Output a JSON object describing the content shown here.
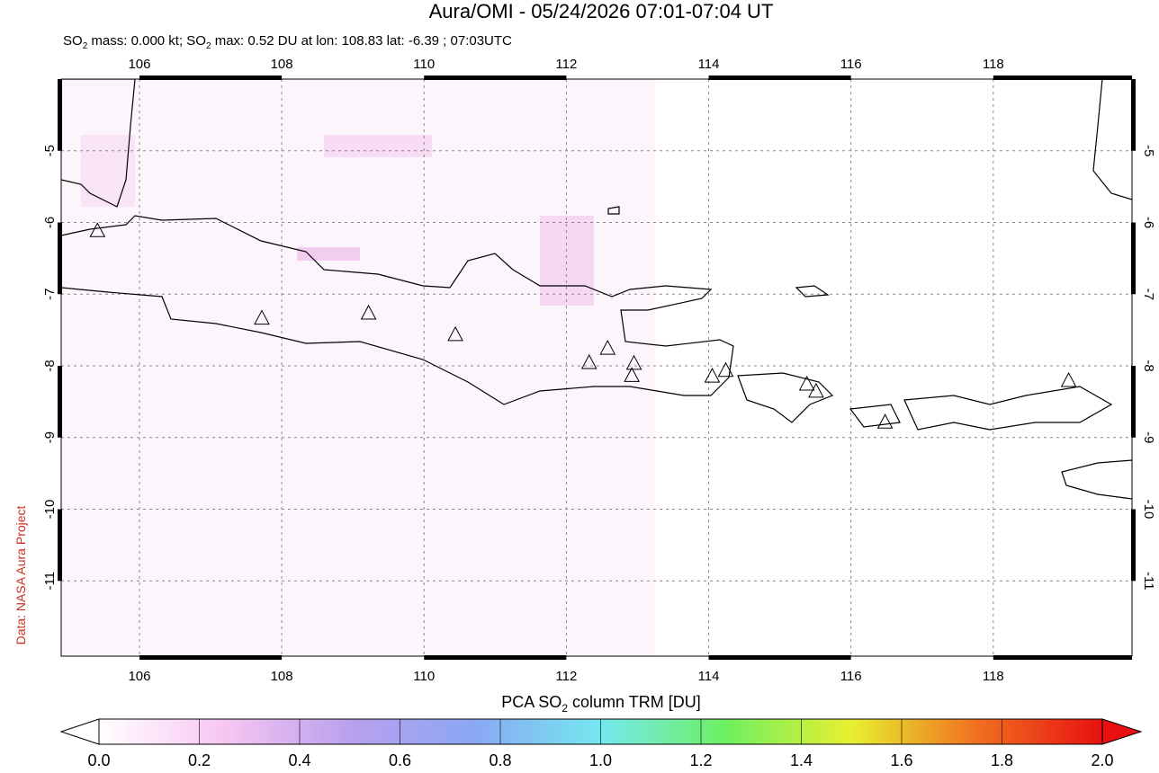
{
  "chart_data": {
    "type": "map",
    "title": "Aura/OMI - 05/24/2026 07:01-07:04 UT",
    "subtitle": [
      "SO",
      "2",
      " mass: 0.000 kt; SO",
      "2",
      " max: 0.52 DU at lon: 108.83 lat: -6.39 ; 07:03UTC"
    ],
    "credit": "Data: NASA Aura Project",
    "xlim": [
      104.9,
      119.95
    ],
    "ylim": [
      -12.05,
      -4
    ],
    "xticks": [
      106,
      108,
      110,
      112,
      114,
      116,
      118
    ],
    "yticks": [
      -11,
      -10,
      -9,
      -8,
      -7,
      -6,
      -5
    ],
    "grid": true,
    "volcanoes": {
      "x": [
        105.41,
        107.72,
        109.22,
        110.44,
        112.32,
        112.58,
        112.95,
        112.92,
        114.05,
        114.24,
        115.38,
        115.51,
        116.48,
        119.06
      ],
      "y": [
        -6.11,
        -7.33,
        -7.26,
        -7.56,
        -7.95,
        -7.75,
        -7.96,
        -8.13,
        -8.14,
        -8.06,
        -8.25,
        -8.35,
        -8.78,
        -8.2
      ]
    },
    "colorbar": {
      "label": [
        "PCA SO",
        "2",
        " column TRM [DU]"
      ],
      "clim": [
        0,
        2
      ],
      "colors": [
        "#ffffff",
        "#f7c6f2",
        "#b9a0ee",
        "#8aa8f4",
        "#74e8f0",
        "#6ef060",
        "#e8f030",
        "#f07020",
        "#e81010"
      ],
      "ticks": [
        {
          "value": 0,
          "label": "0.0"
        },
        {
          "value": 0.2,
          "label": "0.2"
        },
        {
          "value": 0.4,
          "label": "0.4"
        },
        {
          "value": 0.6,
          "label": "0.6"
        },
        {
          "value": 0.8,
          "label": "0.8"
        },
        {
          "value": 1,
          "label": "1.0"
        },
        {
          "value": 1.2,
          "label": "1.2"
        },
        {
          "value": 1.4,
          "label": "1.4"
        },
        {
          "value": 1.6,
          "label": "1.6"
        },
        {
          "value": 1.8,
          "label": "1.8"
        },
        {
          "value": 2,
          "label": "2.0"
        }
      ]
    }
  }
}
